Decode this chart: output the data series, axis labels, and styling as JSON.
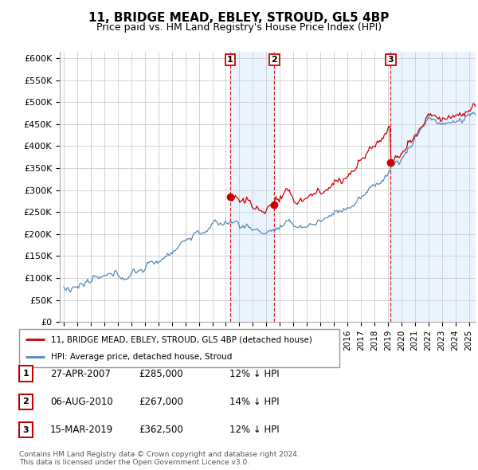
{
  "title": "11, BRIDGE MEAD, EBLEY, STROUD, GL5 4BP",
  "subtitle": "Price paid vs. HM Land Registry's House Price Index (HPI)",
  "ylabel_ticks": [
    "£0",
    "£50K",
    "£100K",
    "£150K",
    "£200K",
    "£250K",
    "£300K",
    "£350K",
    "£400K",
    "£450K",
    "£500K",
    "£550K",
    "£600K"
  ],
  "ytick_values": [
    0,
    50000,
    100000,
    150000,
    200000,
    250000,
    300000,
    350000,
    400000,
    450000,
    500000,
    550000,
    600000
  ],
  "xlim_years": [
    1994.7,
    2025.5
  ],
  "ylim": [
    0,
    615000
  ],
  "sale_dates": [
    2007.32,
    2010.59,
    2019.21
  ],
  "sale_prices": [
    285000,
    267000,
    362500
  ],
  "sale_labels": [
    "1",
    "2",
    "3"
  ],
  "legend_label_red": "11, BRIDGE MEAD, EBLEY, STROUD, GL5 4BP (detached house)",
  "legend_label_blue": "HPI: Average price, detached house, Stroud",
  "table_rows": [
    {
      "num": "1",
      "date": "27-APR-2007",
      "price": "£285,000",
      "hpi": "12% ↓ HPI"
    },
    {
      "num": "2",
      "date": "06-AUG-2010",
      "price": "£267,000",
      "hpi": "14% ↓ HPI"
    },
    {
      "num": "3",
      "date": "15-MAR-2019",
      "price": "£362,500",
      "hpi": "12% ↓ HPI"
    }
  ],
  "footer": "Contains HM Land Registry data © Crown copyright and database right 2024.\nThis data is licensed under the Open Government Licence v3.0.",
  "color_red": "#cc0000",
  "color_blue": "#5588bb",
  "color_blue_shade": "#ddeeff",
  "color_grid": "#cccccc",
  "color_bg_plot": "#ffffff",
  "color_bg_fig": "#ffffff",
  "hpi_base_years": [
    1995,
    1995.5,
    1996,
    1996.5,
    1997,
    1997.5,
    1998,
    1998.5,
    1999,
    1999.5,
    2000,
    2000.5,
    2001,
    2001.5,
    2002,
    2002.5,
    2003,
    2003.5,
    2004,
    2004.5,
    2005,
    2005.5,
    2006,
    2006.5,
    2007,
    2007.5,
    2008,
    2008.5,
    2009,
    2009.5,
    2010,
    2010.5,
    2011,
    2011.5,
    2012,
    2012.5,
    2013,
    2013.5,
    2014,
    2014.5,
    2015,
    2015.5,
    2016,
    2016.5,
    2017,
    2017.5,
    2018,
    2018.5,
    2019,
    2019.5,
    2020,
    2020.5,
    2021,
    2021.5,
    2022,
    2022.5,
    2023,
    2023.5,
    2024,
    2024.5,
    2025
  ],
  "hpi_base_vals": [
    80000,
    81000,
    84000,
    86000,
    90000,
    93000,
    96000,
    99000,
    103000,
    107000,
    112000,
    118000,
    124000,
    130000,
    140000,
    152000,
    164000,
    176000,
    188000,
    197000,
    204000,
    209000,
    214000,
    220000,
    226000,
    228000,
    225000,
    218000,
    210000,
    206000,
    207000,
    210000,
    213000,
    215000,
    216000,
    218000,
    220000,
    224000,
    230000,
    238000,
    247000,
    256000,
    263000,
    270000,
    280000,
    292000,
    308000,
    325000,
    342000,
    358000,
    372000,
    390000,
    415000,
    445000,
    465000,
    460000,
    452000,
    450000,
    453000,
    458000,
    472000
  ]
}
